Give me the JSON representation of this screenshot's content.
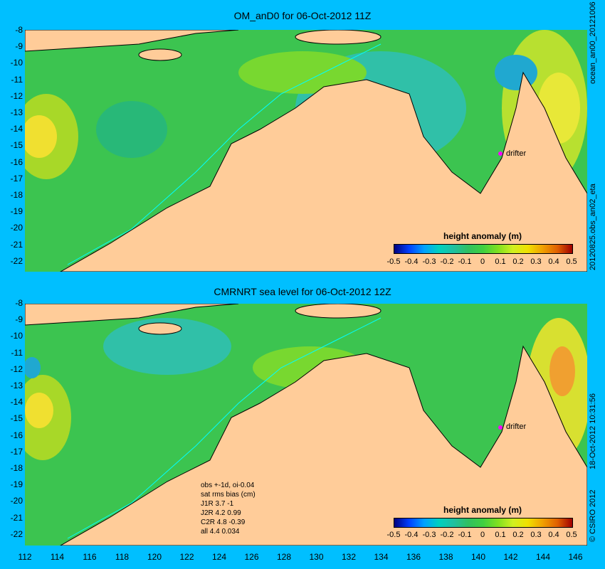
{
  "panel_top": {
    "title": "OM_anD0 for 06-Oct-2012 11Z",
    "side_label": "ocean_an00_20121006",
    "side_label_bottom": "20120825.obs_an02_eta",
    "colorbar_title": "height anomaly (m)",
    "drifter_label": "drifter"
  },
  "panel_bottom": {
    "title": "CMRNRT sea level  for 06-Oct-2012 12Z",
    "side_label": "18-Oct-2012 10:31:56",
    "side_label_bottom": "© CSIRO 2012",
    "colorbar_title": "height anomaly (m)",
    "drifter_label": "drifter",
    "stats": [
      "obs +-1d, oi-0.04",
      "sat rms bias (cm)",
      "J1R    3.7 -1",
      "J2R    4.2 0.99",
      "C2R    4.8 -0.39",
      "all 4.4 0.034"
    ]
  },
  "colorbar_ticks": [
    "-0.5",
    "-0.4",
    "-0.3",
    "-0.2",
    "-0.1",
    "0",
    "0.1",
    "0.2",
    "0.3",
    "0.4",
    "0.5"
  ],
  "y_ticks": [
    "-8",
    "-9",
    "-10",
    "-11",
    "-12",
    "-13",
    "-14",
    "-15",
    "-16",
    "-17",
    "-18",
    "-19",
    "-20",
    "-21",
    "-22"
  ],
  "x_ticks": [
    "112",
    "114",
    "116",
    "118",
    "120",
    "122",
    "124",
    "126",
    "128",
    "130",
    "132",
    "134",
    "136",
    "138",
    "140",
    "142",
    "144",
    "146"
  ],
  "colors": {
    "background": "#00bfff",
    "land": "#ffcc99",
    "ocean_mid": "#40c840",
    "drifter": "#ff00ff"
  }
}
